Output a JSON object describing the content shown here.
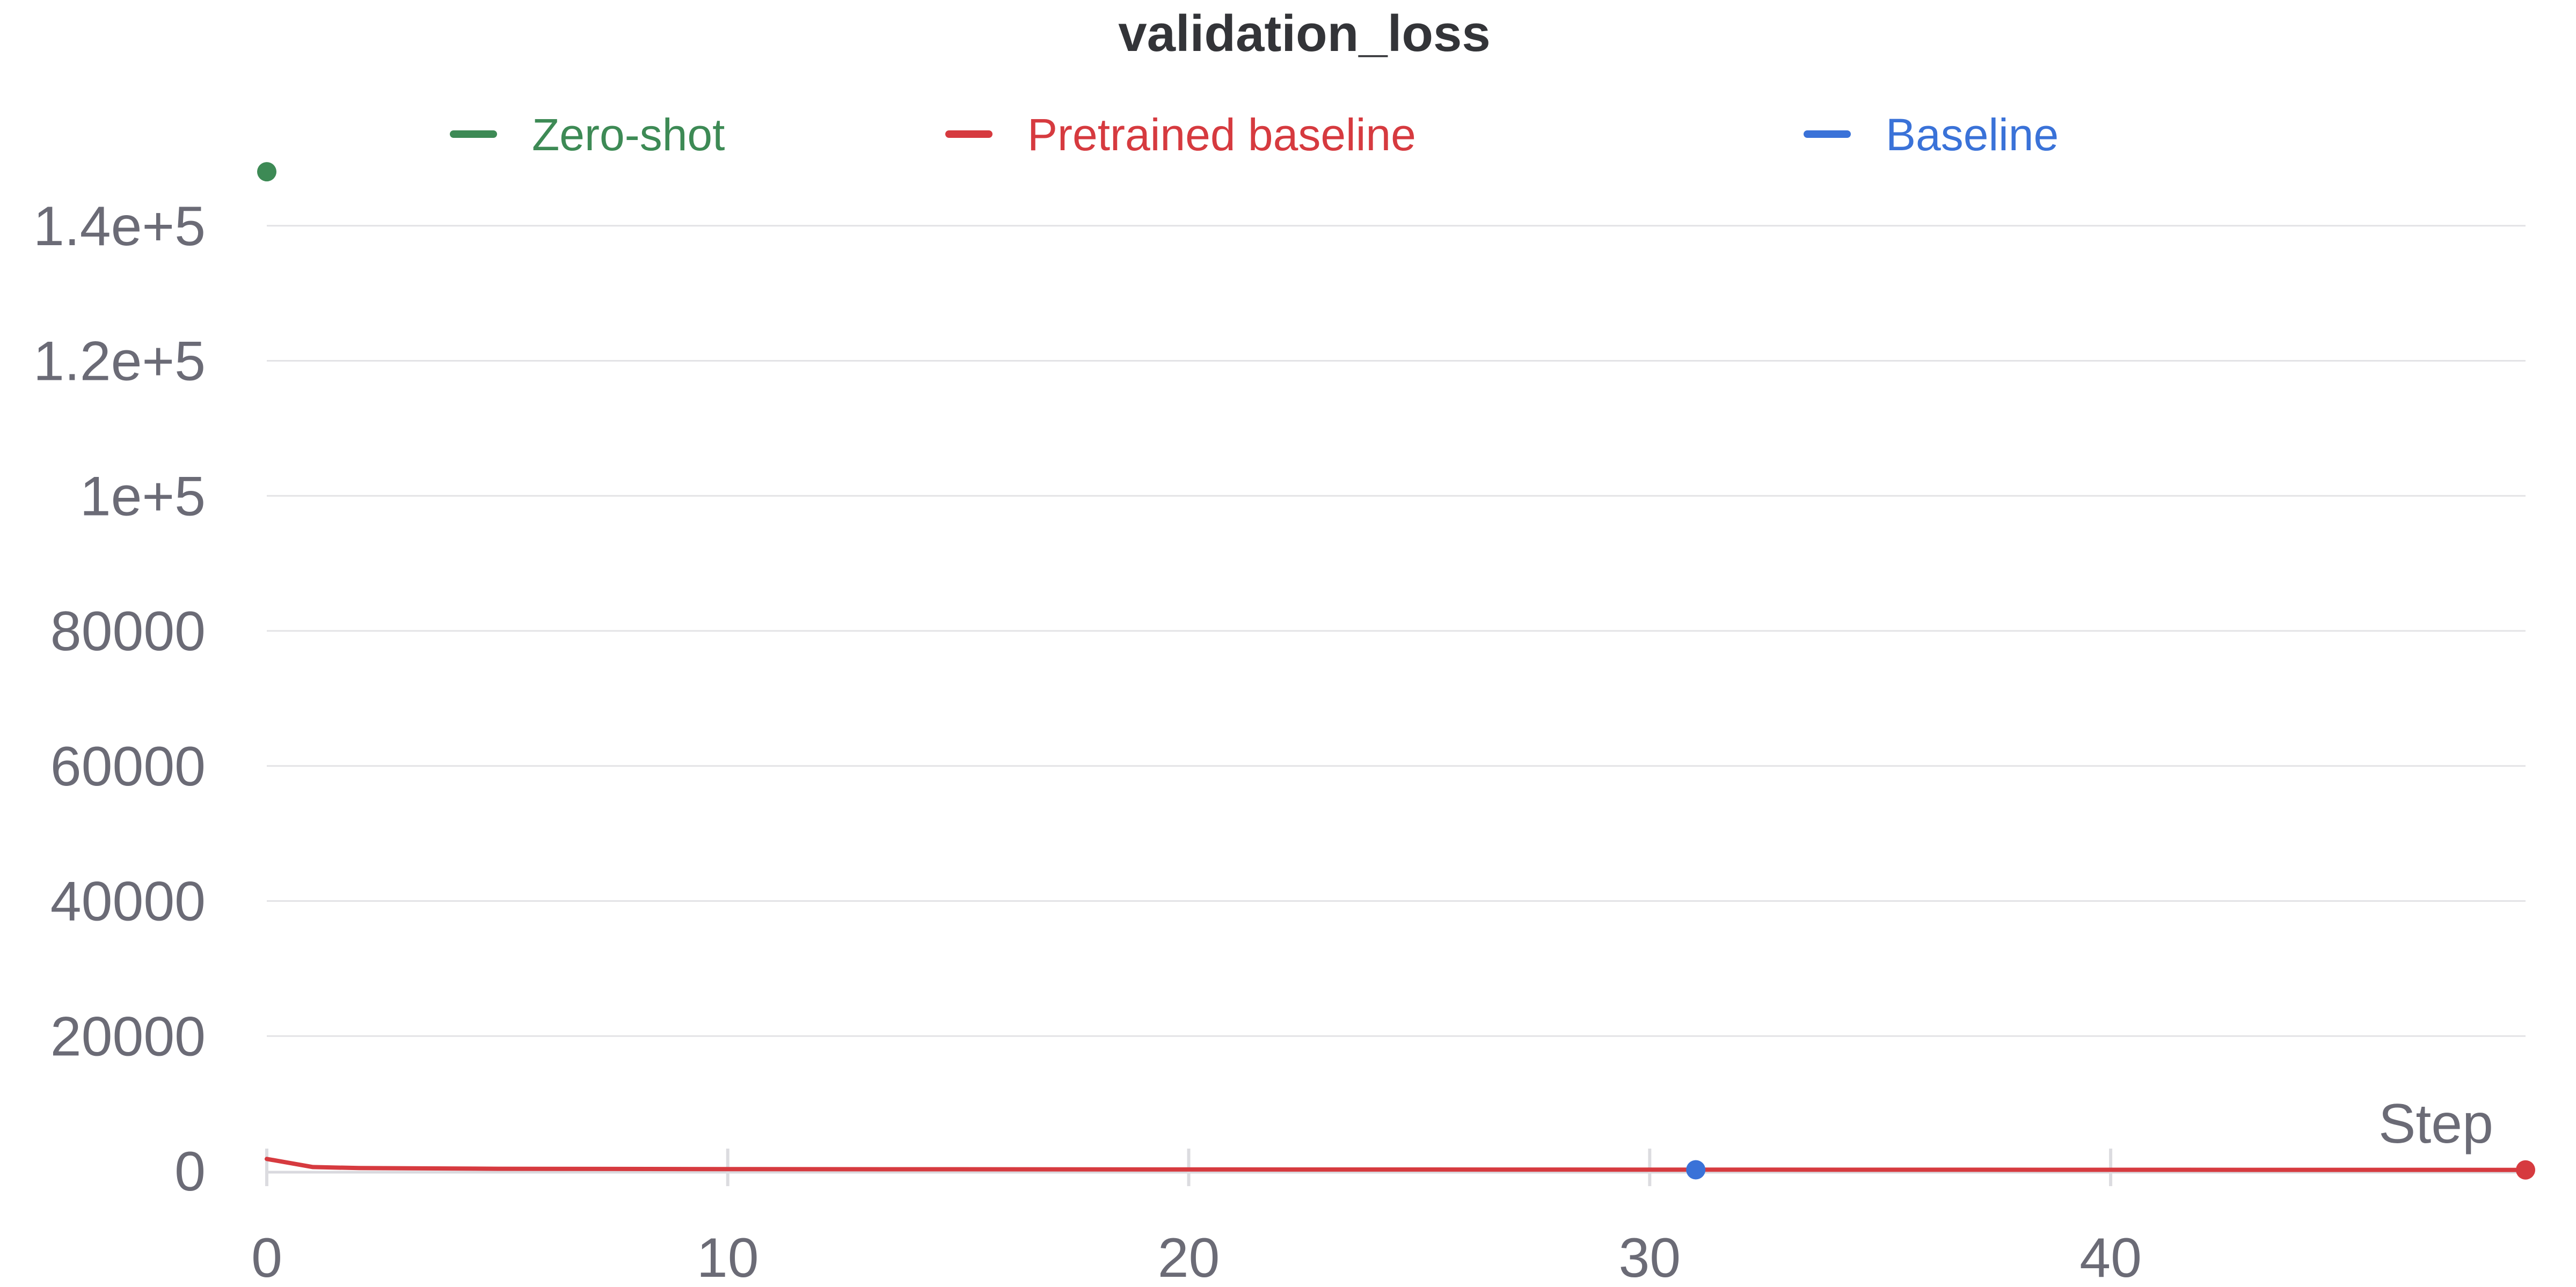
{
  "chart_data": {
    "type": "line",
    "title": "validation_loss",
    "xlabel": "Step",
    "ylabel": "",
    "xlim": [
      0,
      49
    ],
    "ylim": [
      0,
      150000
    ],
    "x_ticks": [
      0,
      10,
      20,
      30,
      40
    ],
    "y_ticks": [
      0,
      20000,
      40000,
      60000,
      80000,
      100000,
      120000,
      140000
    ],
    "y_tick_labels": [
      "0",
      "20000",
      "40000",
      "60000",
      "80000",
      "1e+5",
      "1.2e+5",
      "1.4e+5"
    ],
    "grid": true,
    "legend_position": "top",
    "series": [
      {
        "name": "Zero-shot",
        "color": "#3d8a55",
        "x": [
          0
        ],
        "y": [
          148000
        ]
      },
      {
        "name": "Pretrained baseline",
        "color": "#d63a3f",
        "x": [
          0,
          1,
          2,
          5,
          10,
          20,
          30,
          40,
          49
        ],
        "y": [
          1800,
          600,
          450,
          350,
          300,
          250,
          220,
          200,
          180
        ]
      },
      {
        "name": "Baseline",
        "color": "#3a72d8",
        "x": [
          31
        ],
        "y": [
          200
        ]
      }
    ]
  }
}
